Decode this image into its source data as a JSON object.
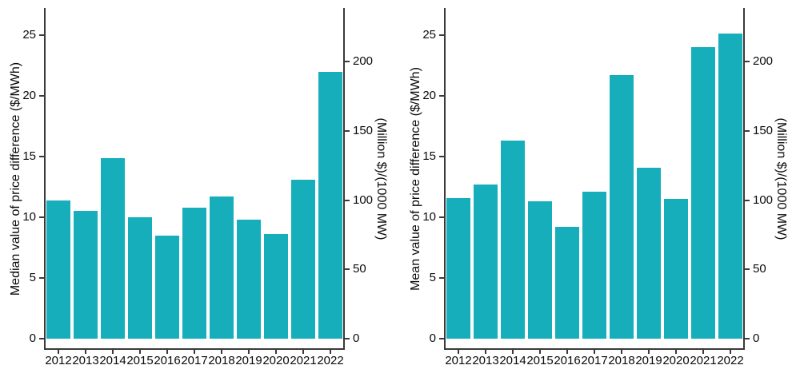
{
  "figure": {
    "background": "#ffffff",
    "bar_color": "#17aebc",
    "axis_color": "#3a3a3a",
    "text_color": "#0a0a0a"
  },
  "chart_data": [
    {
      "type": "bar",
      "title": "",
      "categories": [
        "2012",
        "2013",
        "2014",
        "2015",
        "2016",
        "2017",
        "2018",
        "2019",
        "2020",
        "2021",
        "2022"
      ],
      "values": [
        11.4,
        10.5,
        14.9,
        10.0,
        8.5,
        10.8,
        11.7,
        9.8,
        8.6,
        13.1,
        22.0
      ],
      "ylabel_left": "Median value of price difference ($/MWh)",
      "ylabel_right": "(Million $)/(1000 MW)",
      "yticks_left": [
        0,
        5,
        10,
        15,
        20,
        25
      ],
      "yticks_right": [
        0,
        50,
        100,
        150,
        200
      ],
      "ylim_left": [
        0,
        27.2
      ],
      "ylim_right": [
        0,
        238
      ],
      "grid": false,
      "legend": "none"
    },
    {
      "type": "bar",
      "title": "",
      "categories": [
        "2012",
        "2013",
        "2014",
        "2015",
        "2016",
        "2017",
        "2018",
        "2019",
        "2020",
        "2021",
        "2022"
      ],
      "values": [
        11.6,
        12.7,
        16.3,
        11.3,
        9.2,
        12.1,
        21.7,
        14.1,
        11.5,
        24.0,
        25.1
      ],
      "ylabel_left": "Mean value of price difference ($/MWh)",
      "ylabel_right": "(Million $)/(1000 MW)",
      "yticks_left": [
        0,
        5,
        10,
        15,
        20,
        25
      ],
      "yticks_right": [
        0,
        50,
        100,
        150,
        200
      ],
      "ylim_left": [
        0,
        27.2
      ],
      "ylim_right": [
        0,
        238
      ],
      "grid": false,
      "legend": "none"
    }
  ]
}
